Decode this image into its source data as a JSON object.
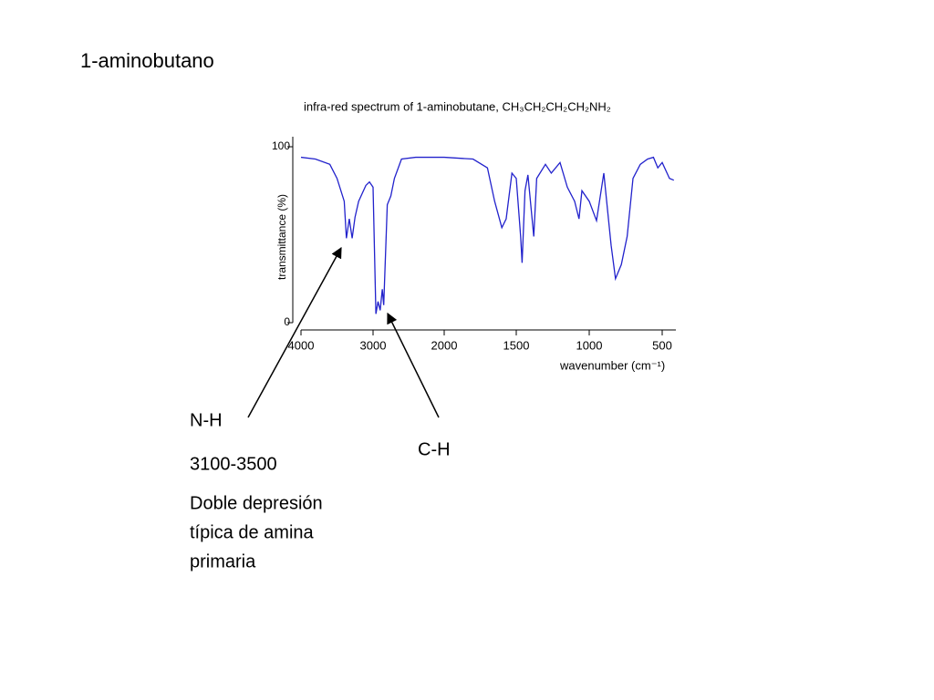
{
  "heading": "1-aminobutano",
  "annotations": {
    "nh_label": "N-H",
    "nh_range": "3100-3500",
    "nh_note": [
      "Doble depresión",
      "típica de amina",
      "primaria"
    ],
    "ch_label": "C-H"
  },
  "chart_data": {
    "type": "line",
    "title": "infra-red spectrum of 1-aminobutane,  CH₃CH₂CH₂CH₂NH₂",
    "x_label": "wavenumber (cm⁻¹)",
    "y_label": "transmittance (%)",
    "x": [
      4000,
      3800,
      3600,
      3500,
      3400,
      3370,
      3330,
      3290,
      3250,
      3200,
      3100,
      3050,
      3000,
      2960,
      2930,
      2900,
      2870,
      2850,
      2800,
      2750,
      2700,
      2600,
      2400,
      2200,
      2000,
      1800,
      1700,
      1650,
      1600,
      1570,
      1530,
      1500,
      1470,
      1460,
      1440,
      1420,
      1380,
      1360,
      1300,
      1260,
      1200,
      1150,
      1100,
      1070,
      1050,
      1000,
      950,
      900,
      850,
      820,
      780,
      740,
      700,
      650,
      600,
      560,
      530,
      500,
      450,
      420
    ],
    "series": [
      {
        "name": "1-aminobutane",
        "color": "#2222cc",
        "values": [
          94,
          93,
          90,
          82,
          69,
          48,
          59,
          48,
          60,
          69,
          78,
          80,
          77,
          5,
          12,
          7,
          19,
          10,
          67,
          72,
          82,
          93,
          94,
          94,
          94,
          93,
          88,
          69,
          54,
          59,
          85,
          82,
          49,
          34,
          75,
          84,
          49,
          82,
          90,
          85,
          91,
          77,
          69,
          59,
          75,
          69,
          58,
          85,
          44,
          25,
          33,
          49,
          82,
          90,
          93,
          94,
          88,
          91,
          82,
          81
        ]
      }
    ],
    "xlim": [
      4000,
      400
    ],
    "ylim": [
      0,
      100
    ],
    "xticks": [
      4000,
      3000,
      2000,
      1500,
      1000,
      500
    ],
    "yticks": [
      0,
      100
    ]
  }
}
